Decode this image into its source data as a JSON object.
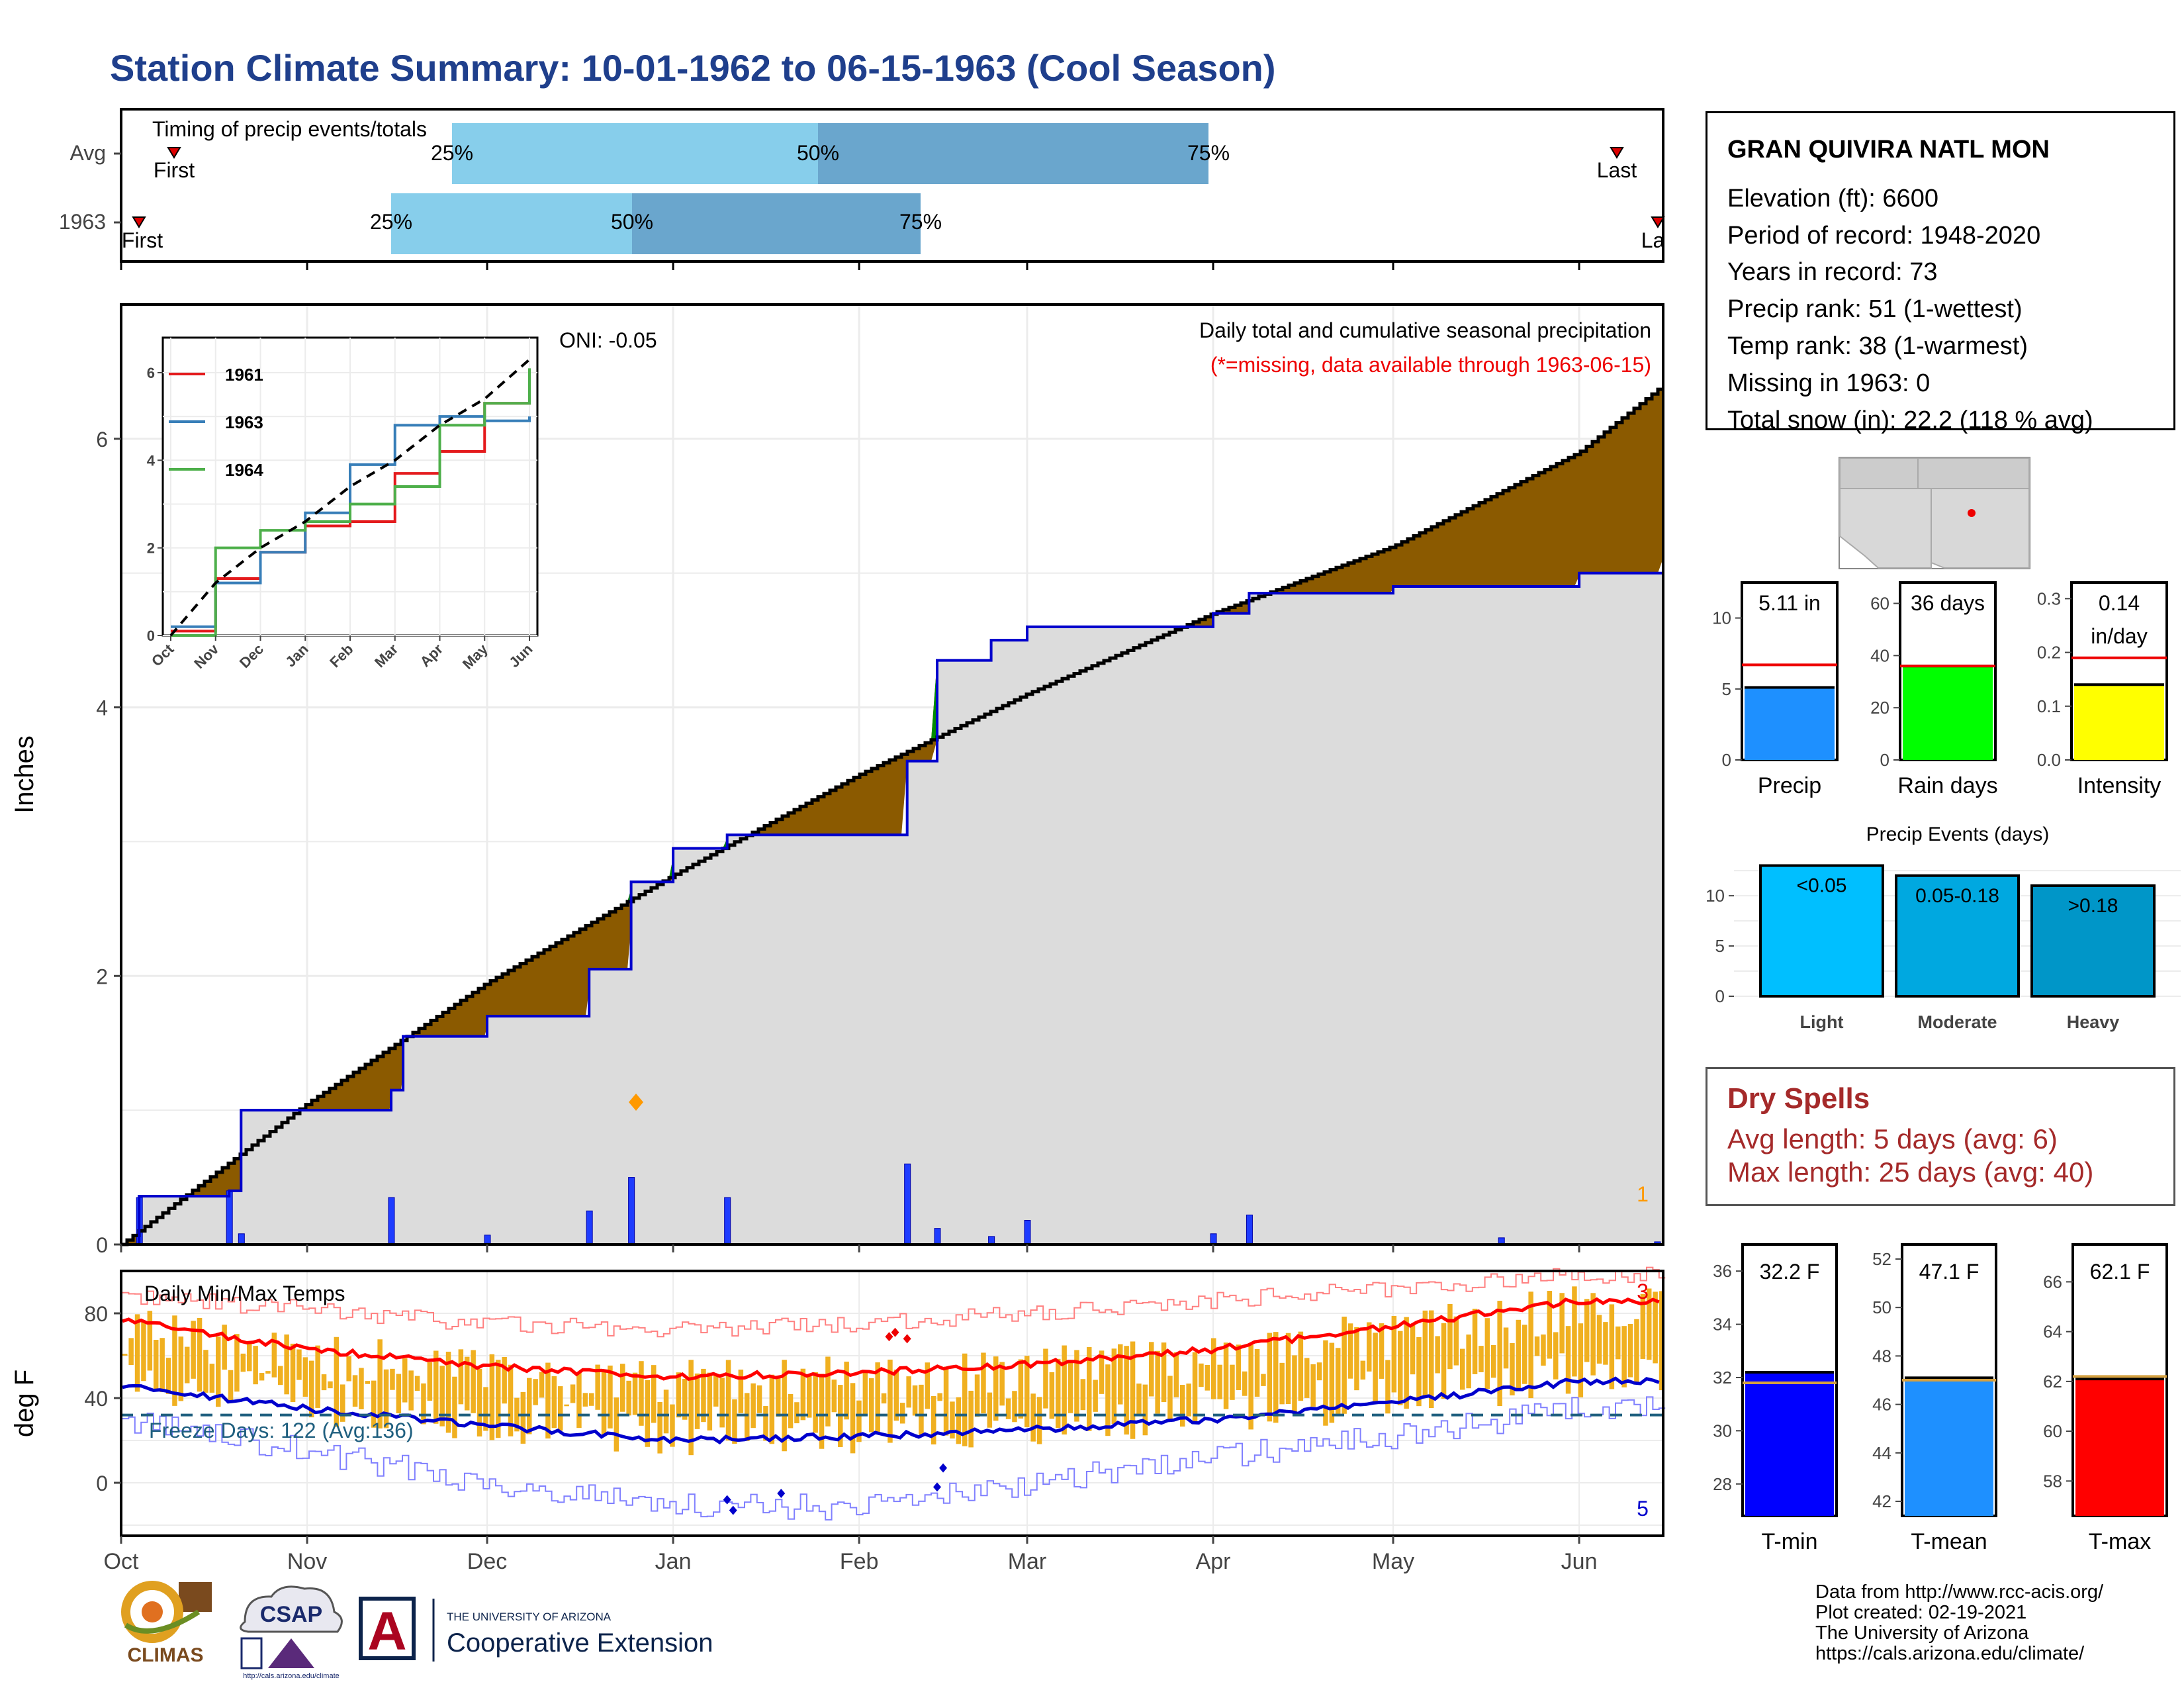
{
  "title": "Station Climate Summary: 10-01-1962 to 06-15-1963 (Cool Season)",
  "colors": {
    "title": "#1f3f8c",
    "cum_fill_brown": "#8b5a00",
    "cum_fill_green": "#008c00",
    "cum_area": "#dcdcdc",
    "avg_line": "#000000",
    "year_line": "#0000cc",
    "daily_bars": "#1e3cff",
    "temp_bars": "#f0b020",
    "tmax_line": "#ff0000",
    "tmin_line": "#0000cc",
    "timing_light": "#87ceeb",
    "timing_dark": "#6aa6cd"
  },
  "timing": {
    "title": "Timing of precip events/totals",
    "rows": [
      {
        "label": "Avg",
        "first": "First",
        "last": "Last",
        "p25": "25%",
        "p50": "50%",
        "p75": "75%"
      },
      {
        "label": "1963",
        "first": "First",
        "last": "Last",
        "p25": "25%",
        "p50": "50%",
        "p75": "75%"
      }
    ]
  },
  "main_chart": {
    "ylabel": "Inches",
    "subtitle1": "Daily total and cumulative seasonal precipitation",
    "subtitle2": "(*=missing, data available through 1963-06-15)",
    "oni": "ONI: -0.05",
    "count_label": "1",
    "yticks": [
      "0",
      "2",
      "4",
      "6"
    ]
  },
  "inset": {
    "series_names": [
      "1961",
      "1963",
      "1964"
    ],
    "series_colors": [
      "#e41a1c",
      "#377eb8",
      "#4daf4a"
    ],
    "yticks": [
      "0",
      "2",
      "4",
      "6"
    ],
    "xticks": [
      "Oct",
      "Nov",
      "Dec",
      "Jan",
      "Feb",
      "Mar",
      "Apr",
      "May",
      "Jun"
    ]
  },
  "temp_chart": {
    "ylabel": "deg F",
    "title": "Daily Min/Max Temps",
    "freeze": "Freeze Days: 122 (Avg:136)",
    "yticks": [
      "0",
      "40",
      "80"
    ],
    "count_high": "3",
    "count_low": "5"
  },
  "x_months": [
    "Oct",
    "Nov",
    "Dec",
    "Jan",
    "Feb",
    "Mar",
    "Apr",
    "May",
    "Jun"
  ],
  "station": {
    "name": "GRAN QUIVIRA NATL MON",
    "lines": [
      "Elevation (ft): 6600",
      "Period of record: 1948-2020",
      "Years in record: 73",
      "Precip rank: 51 (1-wettest)",
      "Temp rank: 38 (1-warmest)",
      "Missing in 1963: 0",
      "Total snow (in): 22.2 (118 % avg)"
    ]
  },
  "mini_bars": {
    "precip": {
      "label": "Precip",
      "value_text": "5.11 in",
      "yticks": [
        "0",
        "5",
        "10"
      ]
    },
    "rain_days": {
      "label": "Rain days",
      "value_text": "36 days",
      "yticks": [
        "0",
        "20",
        "40",
        "60"
      ]
    },
    "intensity": {
      "label": "Intensity",
      "value_text": "0.14",
      "value_text2": "in/day",
      "yticks": [
        "0.0",
        "0.1",
        "0.2",
        "0.3"
      ]
    }
  },
  "events": {
    "title": "Precip Events (days)",
    "categories": [
      "Light",
      "Moderate",
      "Heavy"
    ],
    "bar_labels": [
      "<0.05",
      "0.05-0.18",
      ">0.18"
    ],
    "yticks": [
      "0",
      "5",
      "10"
    ]
  },
  "dry_spells": {
    "title": "Dry Spells",
    "avg_line": "Avg length: 5 days (avg: 6)",
    "max_line": "Max length: 25 days (avg: 40)"
  },
  "temp_bars": {
    "tmin": {
      "label": "T-min",
      "value_text": "32.2 F",
      "yticks": [
        "28",
        "30",
        "32",
        "34",
        "36"
      ]
    },
    "tmean": {
      "label": "T-mean",
      "value_text": "47.1 F",
      "yticks": [
        "42",
        "44",
        "46",
        "48",
        "50",
        "52"
      ]
    },
    "tmax": {
      "label": "T-max",
      "value_text": "62.1 F",
      "yticks": [
        "58",
        "60",
        "62",
        "64",
        "66"
      ]
    }
  },
  "logos": {
    "climas": "CLIMAS",
    "csap": "CSAP",
    "csap_url": "http://cals.arizona.edu/climate",
    "ua_small": "THE UNIVERSITY OF ARIZONA",
    "ua_big": "Cooperative Extension",
    "ua_letter": "A"
  },
  "credits": [
    "Data from http://www.rcc-acis.org/",
    "Plot created: 02-19-2021",
    "The University of Arizona",
    "https://cals.arizona.edu/climate/"
  ],
  "chart_data": [
    {
      "type": "area",
      "title": "Daily total and cumulative seasonal precipitation",
      "ylabel": "Inches",
      "ylim": [
        0,
        7.0
      ],
      "xlim": [
        "1962-10-01",
        "1963-06-15"
      ],
      "series": [
        {
          "name": "Average cumulative",
          "x": [
            "1962-10-01",
            "1962-11-01",
            "1962-12-01",
            "1963-01-01",
            "1963-02-01",
            "1963-03-01",
            "1963-04-01",
            "1963-05-01",
            "1963-06-01",
            "1963-06-15"
          ],
          "values": [
            0.0,
            1.05,
            1.95,
            2.75,
            3.5,
            4.1,
            4.7,
            5.2,
            5.9,
            6.4
          ]
        },
        {
          "name": "1963 cumulative",
          "x": [
            "1962-10-01",
            "1962-10-04",
            "1962-10-19",
            "1962-10-21",
            "1962-11-15",
            "1962-11-17",
            "1962-12-01",
            "1962-12-18",
            "1962-12-25",
            "1963-01-01",
            "1963-01-10",
            "1963-01-19",
            "1963-02-09",
            "1963-02-14",
            "1963-02-23",
            "1963-03-01",
            "1963-04-01",
            "1963-04-07",
            "1963-05-01",
            "1963-06-01",
            "1963-06-15"
          ],
          "values": [
            0.0,
            0.36,
            0.4,
            1.0,
            1.15,
            1.55,
            1.7,
            2.05,
            2.7,
            2.95,
            3.05,
            3.05,
            3.6,
            4.35,
            4.5,
            4.6,
            4.7,
            4.85,
            4.9,
            5.0,
            5.11
          ]
        }
      ],
      "daily_precip": {
        "dates": [
          "1962-10-04",
          "1962-10-19",
          "1962-10-21",
          "1962-11-15",
          "1962-12-01",
          "1962-12-18",
          "1962-12-25",
          "1963-01-10",
          "1963-02-09",
          "1963-02-14",
          "1963-02-23",
          "1963-03-01",
          "1963-04-01",
          "1963-04-07",
          "1963-05-19",
          "1963-06-14"
        ],
        "values": [
          0.35,
          0.4,
          0.08,
          0.35,
          0.07,
          0.25,
          0.5,
          0.35,
          0.6,
          0.12,
          0.06,
          0.18,
          0.08,
          0.22,
          0.05,
          0.02
        ]
      }
    },
    {
      "type": "line",
      "title": "",
      "xlabel": "",
      "ylabel": "",
      "ylim": [
        0,
        6.8
      ],
      "x": [
        "Oct",
        "Nov",
        "Dec",
        "Jan",
        "Feb",
        "Mar",
        "Apr",
        "May",
        "Jun"
      ],
      "series": [
        {
          "name": "1961",
          "values": [
            0.1,
            1.3,
            1.9,
            2.5,
            2.6,
            3.7,
            4.2,
            5.3,
            5.8
          ]
        },
        {
          "name": "1963",
          "values": [
            0.2,
            1.2,
            1.9,
            2.8,
            3.9,
            4.8,
            5.0,
            4.9,
            5.0
          ]
        },
        {
          "name": "1964",
          "values": [
            0.0,
            2.0,
            2.4,
            2.6,
            3.0,
            3.4,
            4.8,
            5.3,
            6.1
          ]
        }
      ],
      "average": [
        0.0,
        1.2,
        2.0,
        2.6,
        3.4,
        4.0,
        4.8,
        5.4,
        6.3
      ]
    },
    {
      "type": "bar",
      "title": "Daily Min/Max Temps",
      "ylabel": "deg F",
      "ylim": [
        -25,
        100
      ],
      "x": [
        "Oct",
        "Nov",
        "Dec",
        "Jan",
        "Feb",
        "Mar",
        "Apr",
        "May",
        "Jun"
      ],
      "series": [
        {
          "name": "Average max",
          "values": [
            77,
            63,
            55,
            50,
            52,
            56,
            63,
            74,
            86
          ]
        },
        {
          "name": "Average min",
          "values": [
            46,
            35,
            27,
            20,
            22,
            25,
            30,
            38,
            48
          ]
        },
        {
          "name": "Record max",
          "values": [
            88,
            82,
            75,
            72,
            75,
            80,
            86,
            92,
            98
          ]
        },
        {
          "name": "Record min",
          "values": [
            30,
            15,
            0,
            -10,
            -12,
            0,
            12,
            22,
            35
          ]
        }
      ],
      "freeze_threshold": 32
    },
    {
      "type": "bar",
      "title": "",
      "categories": [
        "Precip",
        "Rain days",
        "Intensity"
      ],
      "values": [
        5.11,
        36,
        0.14
      ],
      "averages": [
        6.7,
        36,
        0.19
      ]
    },
    {
      "type": "bar",
      "title": "Precip Events (days)",
      "categories": [
        "Light",
        "Moderate",
        "Heavy"
      ],
      "values": [
        13,
        12,
        11
      ],
      "ylim": [
        0,
        13
      ]
    },
    {
      "type": "bar",
      "title": "",
      "categories": [
        "T-min",
        "T-mean",
        "T-max"
      ],
      "values": [
        32.2,
        47.1,
        62.1
      ],
      "averages": [
        31.8,
        47.0,
        62.2
      ]
    }
  ]
}
